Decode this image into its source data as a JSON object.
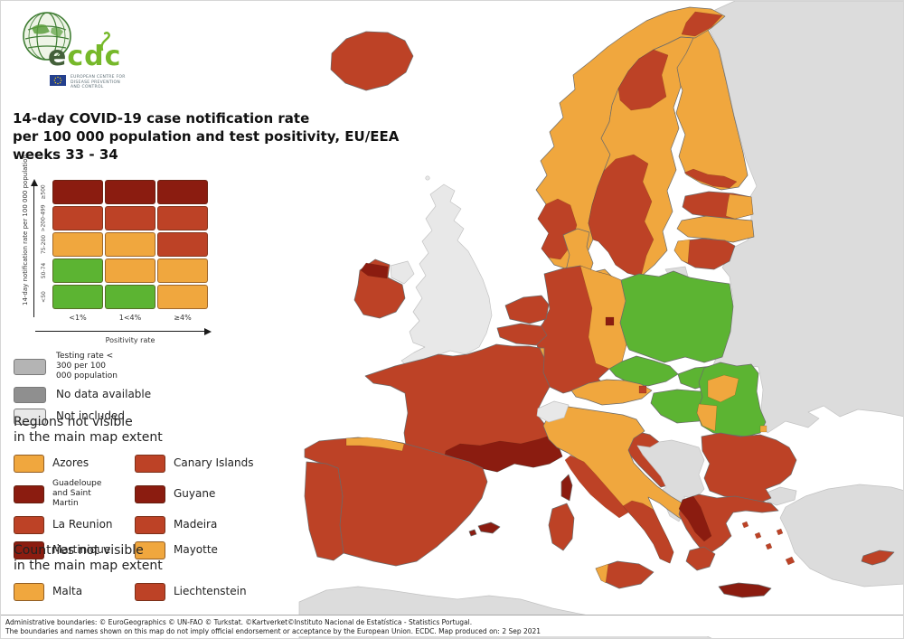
{
  "colors": {
    "green": "#5CB432",
    "orange": "#F0A73E",
    "red": "#BD4226",
    "dark_red": "#8B1C10",
    "gray_testing": "#B4B4B4",
    "gray_nodata": "#8F8F8F",
    "not_included": "#E8E8E8",
    "non_eu": "#DCDCDC"
  },
  "logo": {
    "name": "ecdc",
    "name_first_letter": "e",
    "name_rest": "cdc",
    "subtitle_lines": [
      "EUROPEAN CENTRE FOR",
      "DISEASE PREVENTION",
      "AND CONTROL"
    ]
  },
  "title": {
    "line1": "14-day COVID-19 case notification rate",
    "line2": "per 100 000 population and test positivity, EU/EEA",
    "line3": "weeks 33 - 34"
  },
  "matrix": {
    "y_axis_label": "14-day notification rate per 100 000 population",
    "x_axis_label": "Positivity rate",
    "row_labels": [
      "≥500",
      ">200-499",
      "75-200",
      "50-74",
      "<50"
    ],
    "col_labels": [
      "<1%",
      "1<4%",
      "≥4%"
    ],
    "cells": [
      [
        "dark_red",
        "dark_red",
        "dark_red"
      ],
      [
        "red",
        "red",
        "red"
      ],
      [
        "orange",
        "orange",
        "red"
      ],
      [
        "green",
        "orange",
        "orange"
      ],
      [
        "green",
        "green",
        "orange"
      ]
    ]
  },
  "gray_legend": [
    {
      "label": "Testing rate < 300 per 100 000 population",
      "color_key": "gray_testing"
    },
    {
      "label": "No data available",
      "color_key": "gray_nodata"
    },
    {
      "label": "Not included",
      "color_key": "not_included"
    }
  ],
  "regions_section": {
    "heading_line1": "Regions not visible",
    "heading_line2": "in the main map extent",
    "items": [
      {
        "label": "Azores",
        "color_key": "orange"
      },
      {
        "label": "Canary Islands",
        "color_key": "red"
      },
      {
        "label": "Guadeloupe and Saint Martin",
        "color_key": "dark_red"
      },
      {
        "label": "Guyane",
        "color_key": "dark_red"
      },
      {
        "label": "La Reunion",
        "color_key": "red"
      },
      {
        "label": "Madeira",
        "color_key": "red"
      },
      {
        "label": "Martinique",
        "color_key": "dark_red"
      },
      {
        "label": "Mayotte",
        "color_key": "orange"
      }
    ]
  },
  "countries_section": {
    "heading_line1": "Countries not visible",
    "heading_line2": "in the main map extent",
    "items": [
      {
        "label": "Malta",
        "color_key": "orange"
      },
      {
        "label": "Liechtenstein",
        "color_key": "red"
      }
    ]
  },
  "footer": {
    "line1": "Administrative boundaries: © EuroGeographics © UN-FAO © Turkstat. ©Kartverket©Instituto Nacional de Estatística - Statistics Portugal.",
    "line2": "The boundaries and names shown on this map do not imply official endorsement or acceptance by the European Union. ECDC. Map produced on: 2 Sep 2021"
  },
  "map_regions": {
    "east_landmass": "non_eu",
    "turkey": "non_eu",
    "north_africa": "non_eu",
    "west_balkans": "non_eu",
    "kaliningrad": "non_eu",
    "uk": "not_included",
    "northern_ireland": "not_included",
    "switzerland": "not_included",
    "shetland": "not_included",
    "iceland": "red",
    "ireland": "red",
    "ireland_north": "dark_red",
    "norway": "orange",
    "norway_finnmark": "red",
    "norway_southwest": "red",
    "sweden": "orange",
    "sweden_north": "red",
    "sweden_south": "red",
    "finland": "orange",
    "finland_south": "red",
    "aland": "green",
    "estonia": "red",
    "estonia_east": "orange",
    "latvia": "orange",
    "lithuania": "red",
    "lithuania_west": "orange",
    "denmark": "orange",
    "denmark_islands": "orange",
    "bornholm": "dark_red",
    "germany": "red",
    "germany_east": "orange",
    "berlin": "dark_red",
    "netherlands": "red",
    "belgium": "red",
    "luxembourg": "orange",
    "poland": "green",
    "czechia": "green",
    "slovakia": "green",
    "hungary": "green",
    "austria": "orange",
    "vienna": "red",
    "slovenia": "red",
    "croatia": "red",
    "france": "red",
    "france_south": "dark_red",
    "corsica": "dark_red",
    "spain": "red",
    "spain_north": "orange",
    "portugal": "red",
    "balearics": "dark_red",
    "italy": "orange",
    "italy_west": "red",
    "italy_south": "red",
    "sicily": "red",
    "sicily_west": "orange",
    "sardinia": "red",
    "romania": "green",
    "romania_nw": "orange",
    "romania_west": "orange",
    "bucharest": "orange",
    "bulgaria": "red",
    "greece": "red",
    "greece_west": "dark_red",
    "peloponnese": "red",
    "crete": "dark_red",
    "aegean_islands": "red",
    "cyprus": "red"
  }
}
